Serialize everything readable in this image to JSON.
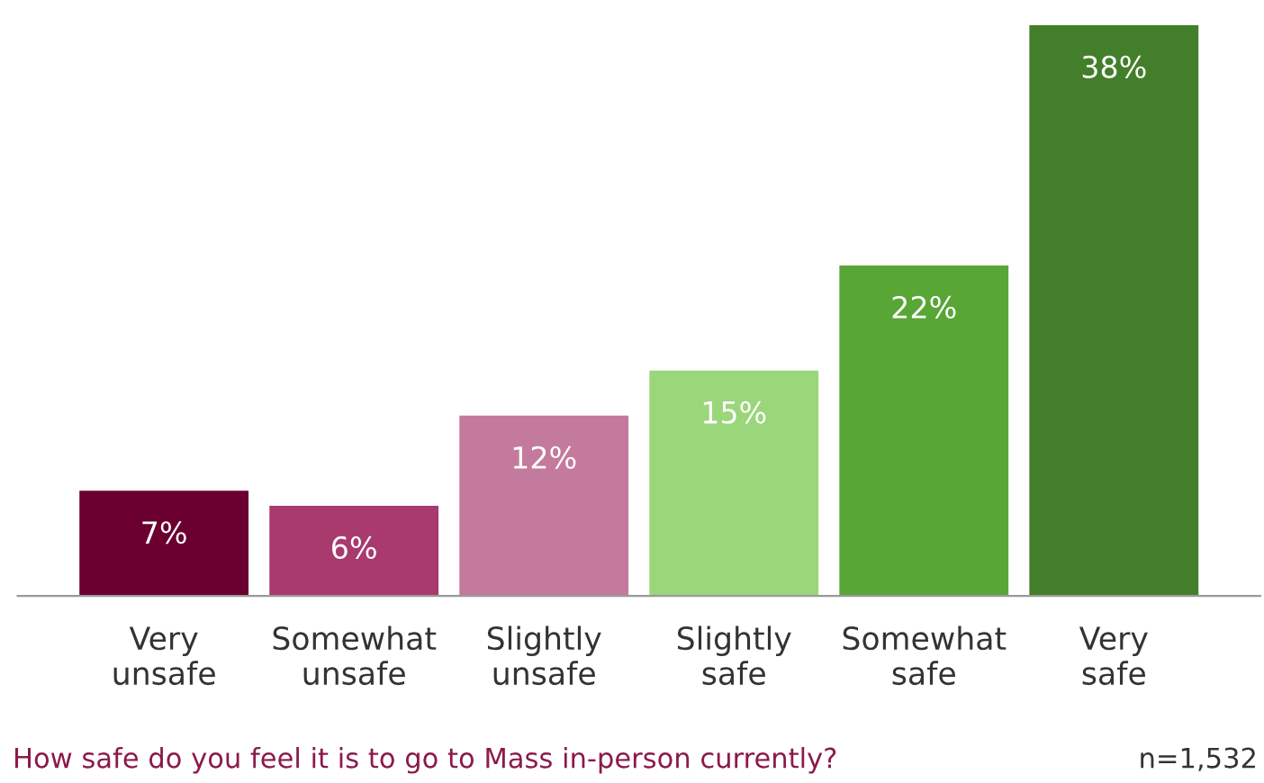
{
  "chart_data": {
    "type": "bar",
    "categories": [
      "Very\nunsafe",
      "Somewhat\nunsafe",
      "Slightly\nunsafe",
      "Slightly\nsafe",
      "Somewhat\nsafe",
      "Very\nsafe"
    ],
    "values": [
      7,
      6,
      12,
      15,
      22,
      38
    ],
    "colors": [
      "#6b0030",
      "#a83a6e",
      "#c47a9c",
      "#9ad67a",
      "#58a636",
      "#437f2a"
    ],
    "value_labels": [
      "7%",
      "6%",
      "12%",
      "15%",
      "22%",
      "38%"
    ],
    "ylim": [
      0,
      38
    ],
    "tick_labels": "x",
    "grid": false,
    "legend": false,
    "annotations": [
      "How safe do you feel it is to go to Mass in-person currently?",
      "n=1,532"
    ]
  }
}
